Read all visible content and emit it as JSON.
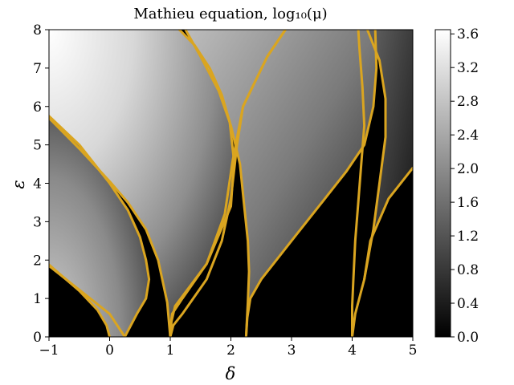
{
  "chart_data": {
    "type": "heatmap",
    "title": "Mathieu equation, log₁₀(μ)",
    "xlabel": "δ",
    "ylabel": "ε",
    "xlim": [
      -1,
      5
    ],
    "ylim": [
      0,
      8
    ],
    "xticks": [
      "−1",
      "0",
      "1",
      "2",
      "3",
      "4",
      "5"
    ],
    "yticks": [
      "0",
      "1",
      "2",
      "3",
      "4",
      "5",
      "6",
      "7",
      "8"
    ],
    "colormap": "gray",
    "colorbar": {
      "range": [
        0.0,
        3.65
      ],
      "ticks": [
        "0.0",
        "0.4",
        "0.8",
        "1.2",
        "1.6",
        "2.0",
        "2.4",
        "2.8",
        "3.2",
        "3.6"
      ]
    },
    "contour_color": "#DAA520",
    "contours": [
      {
        "name": "boundary-a0-left",
        "points": [
          [
            -1,
            1.88
          ],
          [
            -0.5,
            1.2
          ],
          [
            -0.2,
            0.7
          ],
          [
            -0.05,
            0.3
          ],
          [
            0.0,
            0.0
          ]
        ]
      },
      {
        "name": "boundary-a0-right",
        "points": [
          [
            -1,
            1.85
          ],
          [
            -0.4,
            1.1
          ],
          [
            0.0,
            0.6
          ],
          [
            0.25,
            0.0
          ]
        ]
      },
      {
        "name": "boundary-b1-left",
        "points": [
          [
            -1,
            5.75
          ],
          [
            -0.5,
            5.0
          ],
          [
            0.0,
            4.0
          ],
          [
            0.3,
            3.3
          ],
          [
            0.5,
            2.6
          ],
          [
            0.6,
            2.0
          ],
          [
            0.65,
            1.5
          ],
          [
            0.6,
            1.0
          ],
          [
            0.45,
            0.6
          ],
          [
            0.25,
            0.0
          ]
        ]
      },
      {
        "name": "boundary-a1-left",
        "points": [
          [
            -1,
            5.7
          ],
          [
            -0.5,
            4.9
          ],
          [
            0.0,
            4.05
          ],
          [
            0.3,
            3.5
          ],
          [
            0.6,
            2.8
          ],
          [
            0.8,
            2.0
          ],
          [
            0.95,
            0.9
          ],
          [
            1.0,
            0.0
          ]
        ]
      },
      {
        "name": "boundary-a1-right",
        "points": [
          [
            1.0,
            0.0
          ],
          [
            1.05,
            0.3
          ],
          [
            1.2,
            0.6
          ],
          [
            1.6,
            1.5
          ],
          [
            1.85,
            2.5
          ],
          [
            2.0,
            3.6
          ],
          [
            2.1,
            5.0
          ],
          [
            2.2,
            6.0
          ],
          [
            2.6,
            7.3
          ],
          [
            2.9,
            8.0
          ]
        ]
      },
      {
        "name": "boundary-b2-right",
        "points": [
          [
            1.0,
            0.2
          ],
          [
            1.03,
            0.6
          ],
          [
            1.2,
            1.0
          ],
          [
            1.6,
            1.9
          ],
          [
            1.9,
            3.2
          ],
          [
            2.03,
            4.6
          ],
          [
            2.2,
            6.0
          ],
          [
            2.6,
            7.3
          ],
          [
            2.9,
            8.0
          ]
        ]
      },
      {
        "name": "boundary-a2-left",
        "points": [
          [
            1.0,
            0.0
          ],
          [
            1.02,
            0.4
          ],
          [
            1.08,
            0.8
          ],
          [
            1.6,
            1.9
          ],
          [
            2.0,
            3.4
          ],
          [
            2.05,
            4.6
          ],
          [
            1.98,
            5.6
          ],
          [
            1.85,
            6.3
          ],
          [
            1.65,
            7.0
          ],
          [
            1.4,
            7.6
          ],
          [
            1.15,
            8.0
          ]
        ]
      },
      {
        "name": "boundary-a2-right",
        "points": [
          [
            2.25,
            0.0
          ],
          [
            2.27,
            0.5
          ],
          [
            2.32,
            1.0
          ],
          [
            2.5,
            1.5
          ],
          [
            3.1,
            2.7
          ],
          [
            3.5,
            3.5
          ],
          [
            3.9,
            4.3
          ],
          [
            4.2,
            5.0
          ],
          [
            4.35,
            6.0
          ],
          [
            4.4,
            7.0
          ],
          [
            4.38,
            8.0
          ]
        ]
      },
      {
        "name": "boundary-b3-left",
        "points": [
          [
            2.25,
            0.0
          ],
          [
            2.28,
            0.9
          ],
          [
            2.3,
            1.7
          ],
          [
            2.28,
            2.5
          ],
          [
            2.22,
            3.4
          ],
          [
            2.15,
            4.5
          ],
          [
            2.0,
            5.5
          ],
          [
            1.8,
            6.4
          ],
          [
            1.5,
            7.3
          ],
          [
            1.25,
            8.0
          ]
        ]
      },
      {
        "name": "boundary-a3-left",
        "points": [
          [
            4.0,
            0.0
          ],
          [
            4.0,
            0.8
          ],
          [
            4.02,
            1.5
          ],
          [
            4.05,
            2.5
          ],
          [
            4.1,
            3.5
          ],
          [
            4.15,
            4.5
          ],
          [
            4.2,
            5.5
          ],
          [
            4.17,
            6.5
          ],
          [
            4.12,
            7.5
          ],
          [
            4.1,
            8.0
          ]
        ]
      },
      {
        "name": "boundary-a3-right",
        "points": [
          [
            4.0,
            0.0
          ],
          [
            4.05,
            0.6
          ],
          [
            4.2,
            1.5
          ],
          [
            4.3,
            2.5
          ],
          [
            4.6,
            3.6
          ],
          [
            5.0,
            4.4
          ]
        ]
      },
      {
        "name": "boundary-b4-left",
        "points": [
          [
            4.2,
            1.5
          ],
          [
            4.35,
            2.8
          ],
          [
            4.45,
            4.0
          ],
          [
            4.55,
            5.2
          ],
          [
            4.55,
            6.2
          ],
          [
            4.45,
            7.2
          ],
          [
            4.25,
            8.0
          ]
        ]
      }
    ],
    "grid": false
  }
}
